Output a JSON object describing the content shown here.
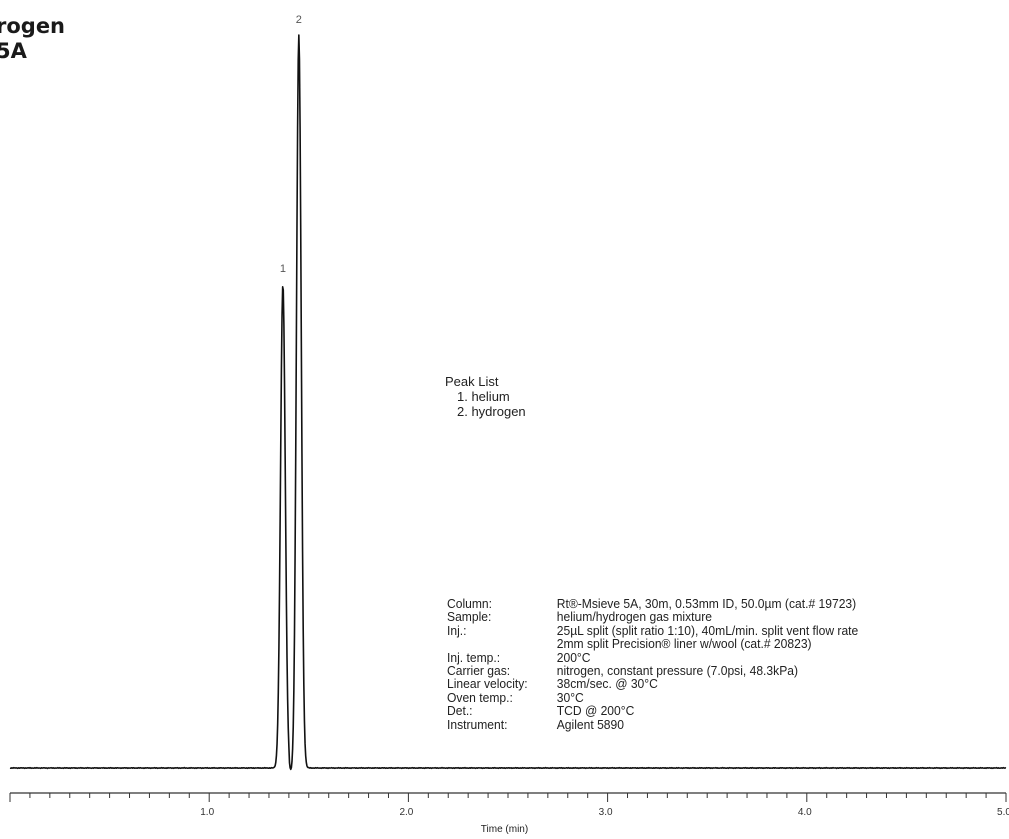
{
  "title_lines": [
    "rogen",
    "5A"
  ],
  "peak_list": {
    "heading": "Peak List",
    "items": [
      "1. helium",
      "2. hydrogen"
    ]
  },
  "conditions": [
    {
      "label": "Column:",
      "value": "Rt®-Msieve 5A, 30m, 0.53mm ID, 50.0µm (cat.# 19723)"
    },
    {
      "label": "Sample:",
      "value": "helium/hydrogen gas mixture"
    },
    {
      "label": "Inj.:",
      "value": "25µL split (split ratio 1:10), 40mL/min. split vent flow rate"
    },
    {
      "label": "",
      "value": "2mm split Precision® liner w/wool (cat.# 20823)"
    },
    {
      "label": "Inj. temp.:",
      "value": "200°C"
    },
    {
      "label": "Carrier gas:",
      "value": "nitrogen, constant pressure (7.0psi, 48.3kPa)"
    },
    {
      "label": "Linear velocity:",
      "value": "38cm/sec. @ 30°C"
    },
    {
      "label": "Oven temp.:",
      "value": "30°C"
    },
    {
      "label": "Det.:",
      "value": "TCD @ 200°C"
    },
    {
      "label": "Instrument:",
      "value": "Agilent 5890"
    }
  ],
  "chart_data": {
    "type": "line",
    "xlabel": "Time (min)",
    "ylabel": "",
    "xlim": [
      0.0,
      5.0
    ],
    "ylim": [
      0,
      100
    ],
    "x_ticks": [
      1.0,
      2.0,
      3.0,
      4.0,
      5.0
    ],
    "x_tick_labels": [
      "1.0",
      "2.0",
      "3.0",
      "4.0",
      "5.0"
    ],
    "baseline": 0,
    "peaks": [
      {
        "label": "1",
        "x": 1.37,
        "height": 66,
        "width": 0.012
      },
      {
        "label": "2",
        "x": 1.45,
        "height": 100,
        "width": 0.012
      }
    ]
  },
  "colors": {
    "trace": "#111111",
    "axis": "#333333"
  }
}
